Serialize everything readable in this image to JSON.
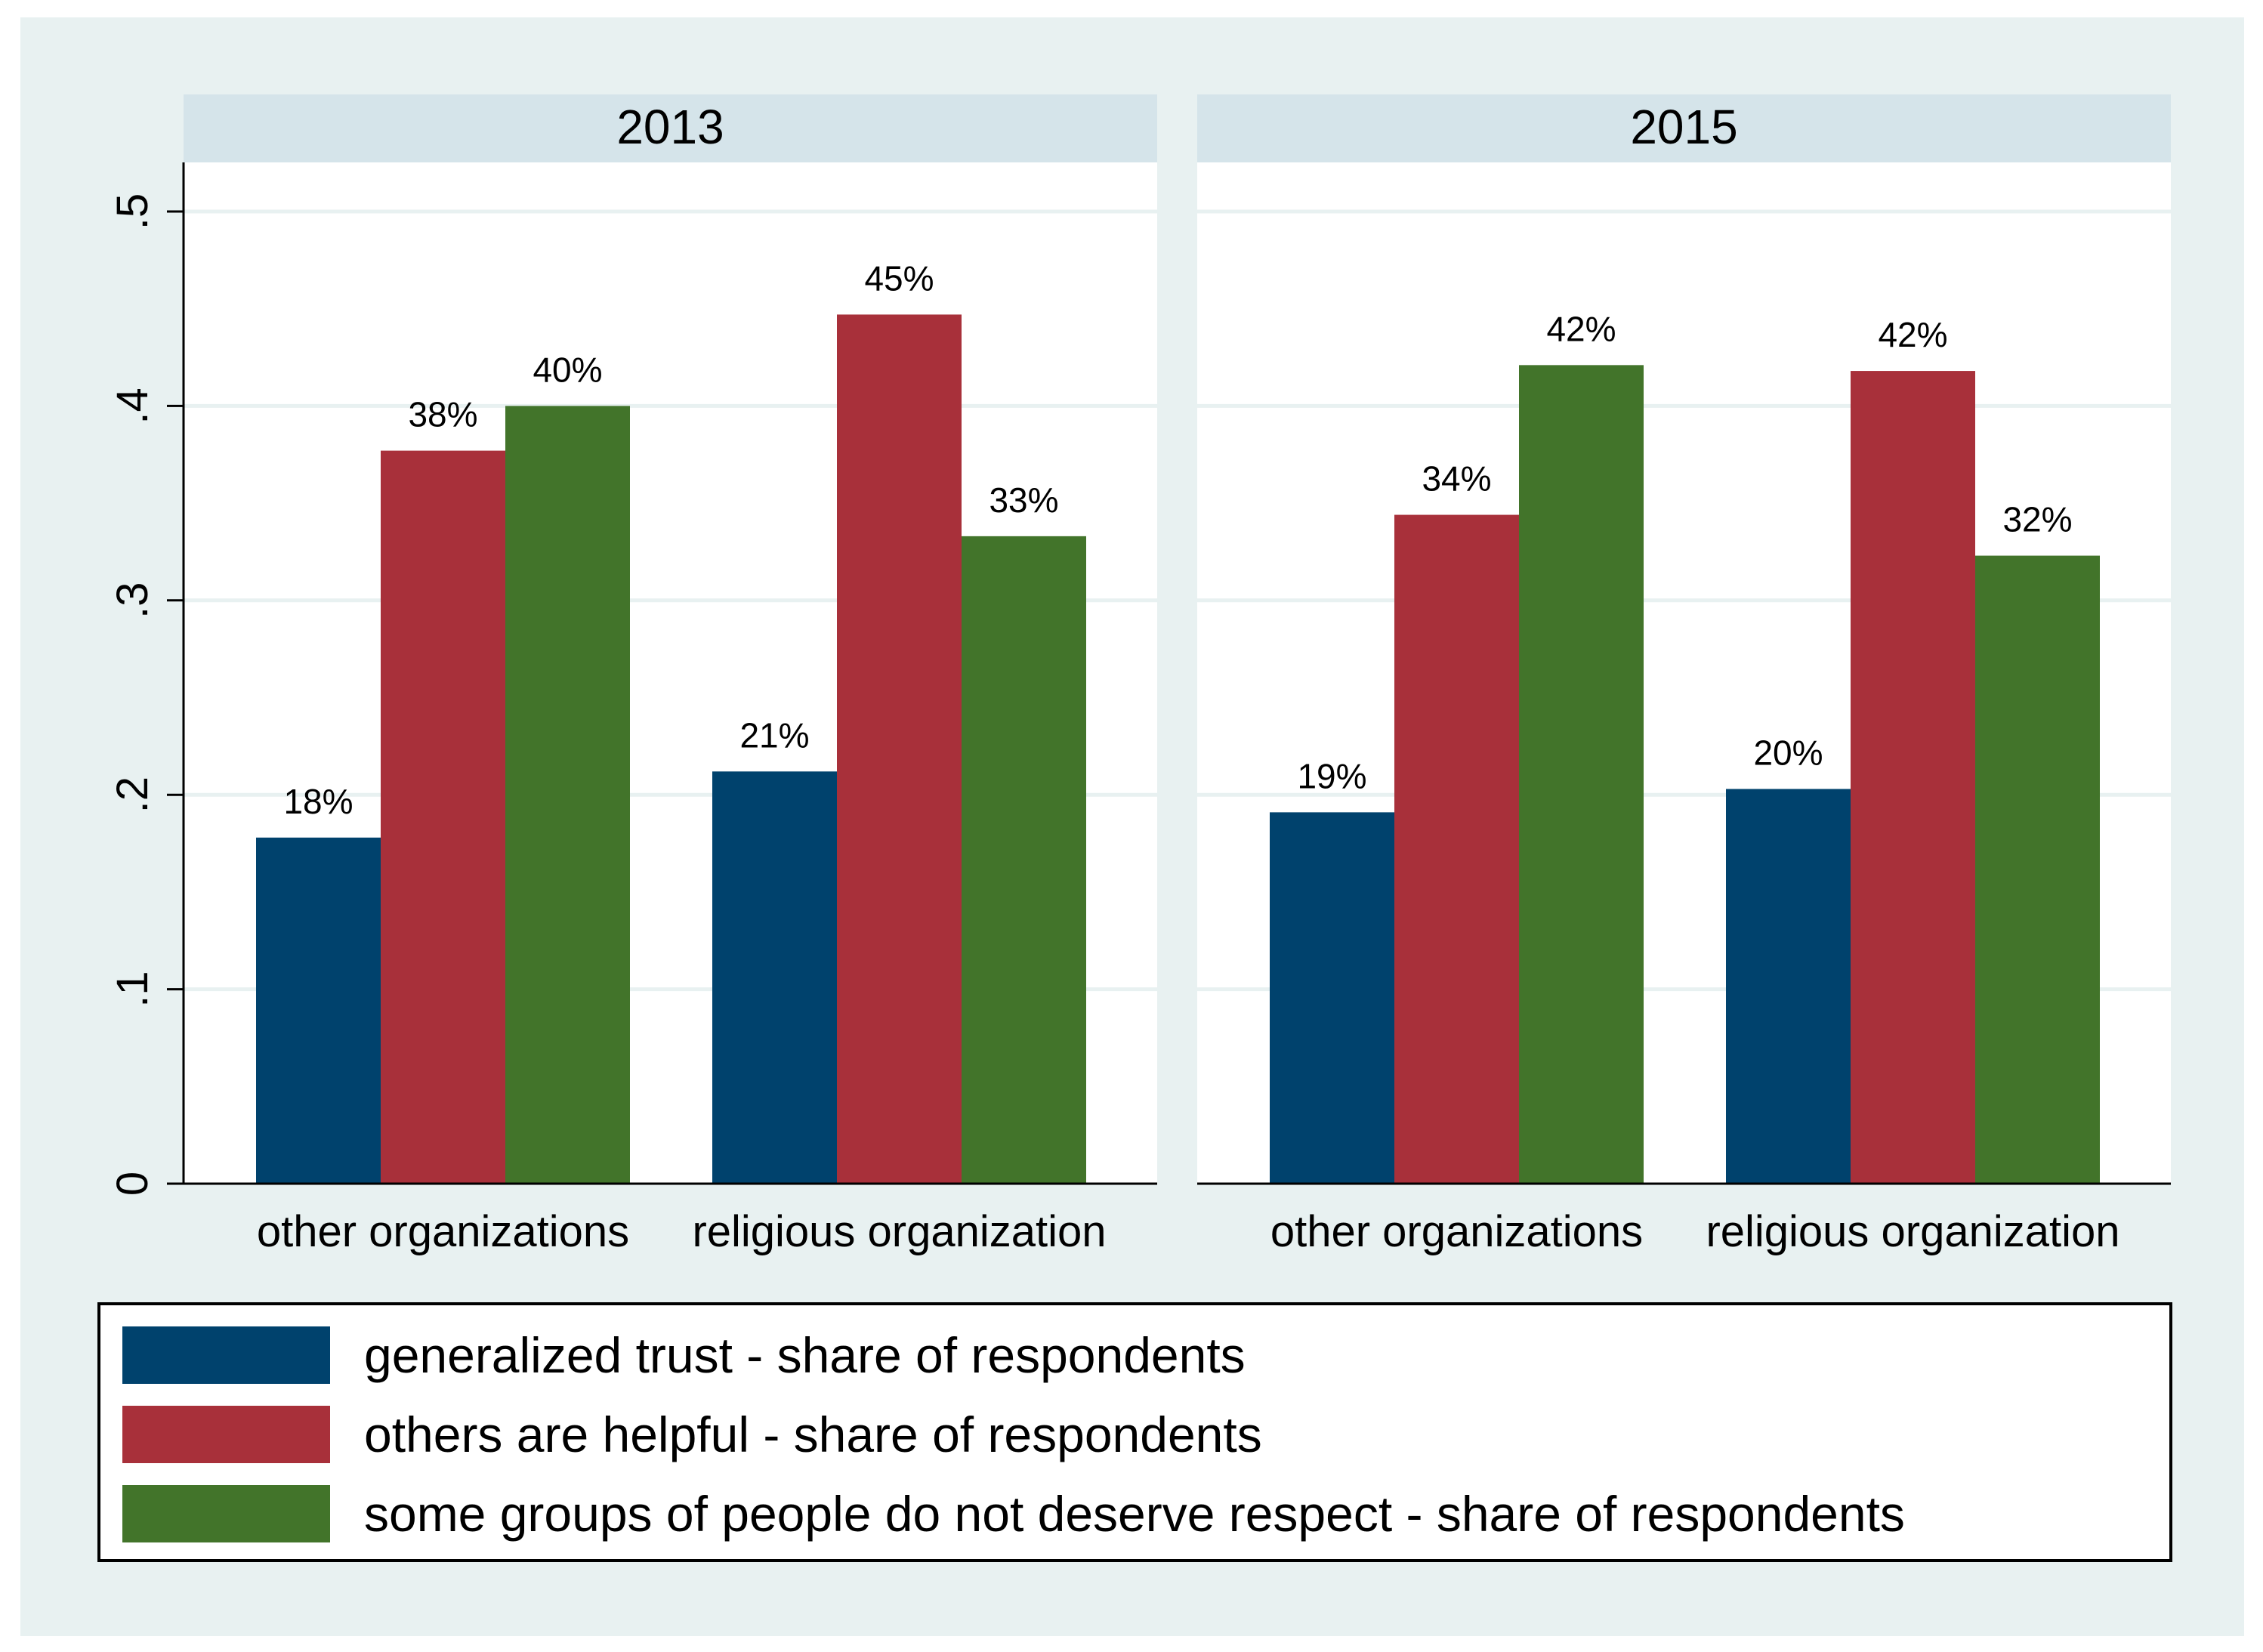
{
  "chart_data": {
    "type": "bar",
    "panels": [
      {
        "title": "2013",
        "categories": [
          "other organizations",
          "religious organization"
        ],
        "series": [
          {
            "name": "generalized trust - share of respondents",
            "values": [
              0.178,
              0.212
            ],
            "labels": [
              "18%",
              "21%"
            ]
          },
          {
            "name": "others are helpful - share of respondents",
            "values": [
              0.377,
              0.447
            ],
            "labels": [
              "38%",
              "45%"
            ]
          },
          {
            "name": "some groups of people do not deserve respect - share of respondents",
            "values": [
              0.4,
              0.333
            ],
            "labels": [
              "40%",
              "33%"
            ]
          }
        ]
      },
      {
        "title": "2015",
        "categories": [
          "other organizations",
          "religious organization"
        ],
        "series": [
          {
            "name": "generalized trust - share of respondents",
            "values": [
              0.191,
              0.203
            ],
            "labels": [
              "19%",
              "20%"
            ]
          },
          {
            "name": "others are helpful - share of respondents",
            "values": [
              0.344,
              0.418
            ],
            "labels": [
              "34%",
              "42%"
            ]
          },
          {
            "name": "some groups of people do not deserve respect - share of respondents",
            "values": [
              0.421,
              0.323
            ],
            "labels": [
              "42%",
              "32%"
            ]
          }
        ]
      }
    ],
    "y_ticks": [
      {
        "value": 0,
        "label": "0"
      },
      {
        "value": 0.1,
        "label": ".1"
      },
      {
        "value": 0.2,
        "label": ".2"
      },
      {
        "value": 0.3,
        "label": ".3"
      },
      {
        "value": 0.4,
        "label": ".4"
      },
      {
        "value": 0.5,
        "label": ".5"
      }
    ],
    "ylim": [
      0,
      0.5
    ],
    "grid": true,
    "legend_position": "bottom",
    "series_colors": [
      "#00426d",
      "#a8303a",
      "#42742a"
    ],
    "strip_color": "#d5e4ea",
    "background_color": "#e8f1f1"
  }
}
